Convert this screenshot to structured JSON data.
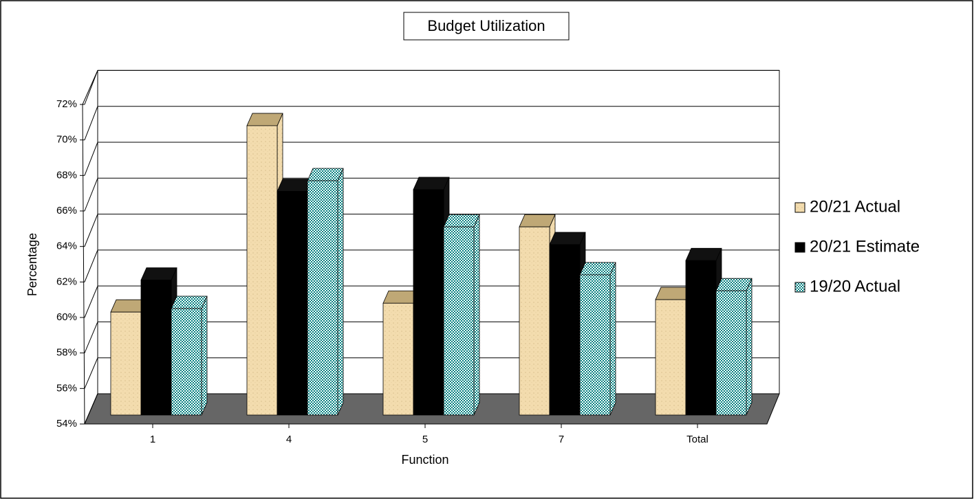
{
  "chart_data": {
    "type": "bar3d",
    "title": "Budget Utilization",
    "x_label": "Function",
    "y_label": "Percentage",
    "categories": [
      "1",
      "4",
      "5",
      "7",
      "Total"
    ],
    "series": [
      {
        "name": "20/21 Actual",
        "color": "#f3dcae",
        "values": [
          59.8,
          70.3,
          60.3,
          64.6,
          60.5
        ]
      },
      {
        "name": "20/21 Estimate",
        "color": "#000000",
        "values": [
          61.6,
          66.6,
          66.7,
          63.6,
          62.7
        ]
      },
      {
        "name": "19/20 Actual",
        "color": "#008080",
        "values": [
          60.0,
          67.2,
          64.6,
          61.9,
          61.0
        ]
      }
    ],
    "ylim": [
      54,
      72
    ],
    "yticks": [
      {
        "value": 54,
        "label": "54%"
      },
      {
        "value": 56,
        "label": "56%"
      },
      {
        "value": 58,
        "label": "58%"
      },
      {
        "value": 60,
        "label": "60%"
      },
      {
        "value": 62,
        "label": "62%"
      },
      {
        "value": 64,
        "label": "64%"
      },
      {
        "value": 66,
        "label": "66%"
      },
      {
        "value": 68,
        "label": "68%"
      },
      {
        "value": 70,
        "label": "70%"
      },
      {
        "value": 72,
        "label": "72%"
      }
    ],
    "grid": true,
    "legend": "right"
  }
}
